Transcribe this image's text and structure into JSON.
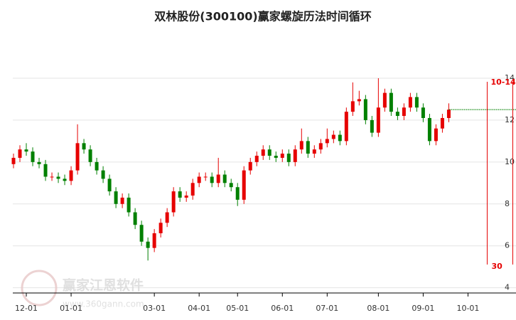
{
  "chart_data": {
    "type": "candlestick",
    "title": "双林股份(300100)赢家螺旋历法时间循环",
    "up_color": "#e60000",
    "down_color": "#008000",
    "ohlc": [
      [
        9.9,
        10.4,
        9.7,
        10.2
      ],
      [
        10.2,
        10.8,
        10.0,
        10.6
      ],
      [
        10.6,
        10.9,
        10.3,
        10.5
      ],
      [
        10.5,
        10.7,
        9.8,
        10.0
      ],
      [
        10.0,
        10.2,
        9.7,
        9.9
      ],
      [
        9.9,
        10.1,
        9.1,
        9.3
      ],
      [
        9.3,
        9.5,
        9.1,
        9.3
      ],
      [
        9.3,
        9.5,
        9.0,
        9.2
      ],
      [
        9.2,
        9.4,
        8.9,
        9.1
      ],
      [
        9.1,
        9.8,
        8.9,
        9.6
      ],
      [
        9.6,
        11.8,
        9.4,
        10.9
      ],
      [
        10.9,
        11.1,
        10.4,
        10.6
      ],
      [
        10.6,
        10.8,
        9.8,
        10.0
      ],
      [
        10.0,
        10.2,
        9.4,
        9.6
      ],
      [
        9.6,
        9.8,
        9.0,
        9.2
      ],
      [
        9.2,
        9.4,
        8.4,
        8.6
      ],
      [
        8.6,
        8.8,
        7.8,
        8.0
      ],
      [
        8.0,
        8.5,
        7.8,
        8.3
      ],
      [
        8.3,
        8.5,
        7.4,
        7.6
      ],
      [
        7.6,
        7.8,
        6.8,
        7.0
      ],
      [
        7.0,
        7.2,
        6.0,
        6.2
      ],
      [
        6.2,
        6.4,
        5.3,
        5.9
      ],
      [
        5.9,
        6.8,
        5.7,
        6.6
      ],
      [
        6.6,
        7.3,
        6.4,
        7.1
      ],
      [
        7.1,
        7.8,
        6.9,
        7.6
      ],
      [
        7.6,
        8.8,
        7.4,
        8.6
      ],
      [
        8.6,
        8.8,
        8.1,
        8.3
      ],
      [
        8.3,
        8.6,
        8.1,
        8.4
      ],
      [
        8.4,
        9.2,
        8.2,
        9.0
      ],
      [
        9.0,
        9.5,
        8.8,
        9.3
      ],
      [
        9.3,
        9.5,
        9.1,
        9.3
      ],
      [
        9.3,
        9.5,
        8.8,
        9.0
      ],
      [
        9.0,
        10.2,
        8.8,
        9.4
      ],
      [
        9.4,
        9.6,
        8.8,
        9.0
      ],
      [
        9.0,
        9.2,
        8.6,
        8.8
      ],
      [
        8.8,
        9.0,
        7.9,
        8.2
      ],
      [
        8.2,
        9.8,
        8.0,
        9.6
      ],
      [
        9.6,
        10.2,
        9.4,
        10.0
      ],
      [
        10.0,
        10.5,
        9.8,
        10.3
      ],
      [
        10.3,
        10.8,
        10.1,
        10.6
      ],
      [
        10.6,
        10.8,
        10.1,
        10.3
      ],
      [
        10.3,
        10.5,
        10.0,
        10.2
      ],
      [
        10.2,
        10.6,
        10.0,
        10.4
      ],
      [
        10.4,
        10.6,
        9.8,
        10.0
      ],
      [
        10.0,
        10.8,
        9.8,
        10.6
      ],
      [
        10.6,
        11.6,
        10.4,
        11.0
      ],
      [
        11.0,
        11.2,
        10.2,
        10.4
      ],
      [
        10.4,
        10.8,
        10.2,
        10.6
      ],
      [
        10.6,
        11.1,
        10.4,
        10.9
      ],
      [
        10.9,
        11.6,
        10.7,
        11.1
      ],
      [
        11.1,
        11.5,
        10.9,
        11.3
      ],
      [
        11.3,
        11.5,
        10.8,
        11.0
      ],
      [
        11.0,
        12.6,
        10.8,
        12.4
      ],
      [
        12.4,
        13.8,
        12.2,
        12.9
      ],
      [
        12.9,
        13.4,
        12.7,
        13.0
      ],
      [
        13.0,
        13.2,
        11.8,
        12.0
      ],
      [
        12.0,
        12.2,
        11.2,
        11.4
      ],
      [
        11.4,
        14.0,
        11.2,
        12.6
      ],
      [
        12.6,
        13.5,
        12.4,
        13.3
      ],
      [
        13.3,
        13.5,
        12.2,
        12.4
      ],
      [
        12.4,
        12.6,
        12.0,
        12.2
      ],
      [
        12.2,
        12.8,
        12.0,
        12.6
      ],
      [
        12.6,
        13.3,
        12.4,
        13.1
      ],
      [
        13.1,
        13.3,
        12.4,
        12.6
      ],
      [
        12.6,
        12.8,
        11.9,
        12.1
      ],
      [
        12.1,
        12.3,
        10.8,
        11.0
      ],
      [
        11.0,
        11.8,
        10.8,
        11.6
      ],
      [
        11.6,
        12.3,
        11.4,
        12.1
      ],
      [
        12.1,
        12.8,
        11.9,
        12.5
      ]
    ],
    "xlim": [
      0,
      78.5
    ],
    "xticks": [
      {
        "value": 2,
        "label": "12-01"
      },
      {
        "value": 9,
        "label": "01-01"
      },
      {
        "value": 22,
        "label": "03-01"
      },
      {
        "value": 29,
        "label": "04-01"
      },
      {
        "value": 35,
        "label": "05-01"
      },
      {
        "value": 42,
        "label": "06-01"
      },
      {
        "value": 49,
        "label": "07-01"
      },
      {
        "value": 57,
        "label": "08-01"
      },
      {
        "value": 64,
        "label": "09-01"
      },
      {
        "value": 71,
        "label": "10-01"
      }
    ],
    "ylim": [
      3.75,
      15.9
    ],
    "yticks": [
      4,
      6,
      8,
      10,
      12,
      14
    ],
    "grid": true,
    "cycle_start": {
      "x": 74,
      "label": "10-14"
    },
    "cycle_end": {
      "x": 78,
      "label": "30"
    },
    "watermark": {
      "name": "赢家江恩软件",
      "url": "www.360gann.com"
    }
  }
}
